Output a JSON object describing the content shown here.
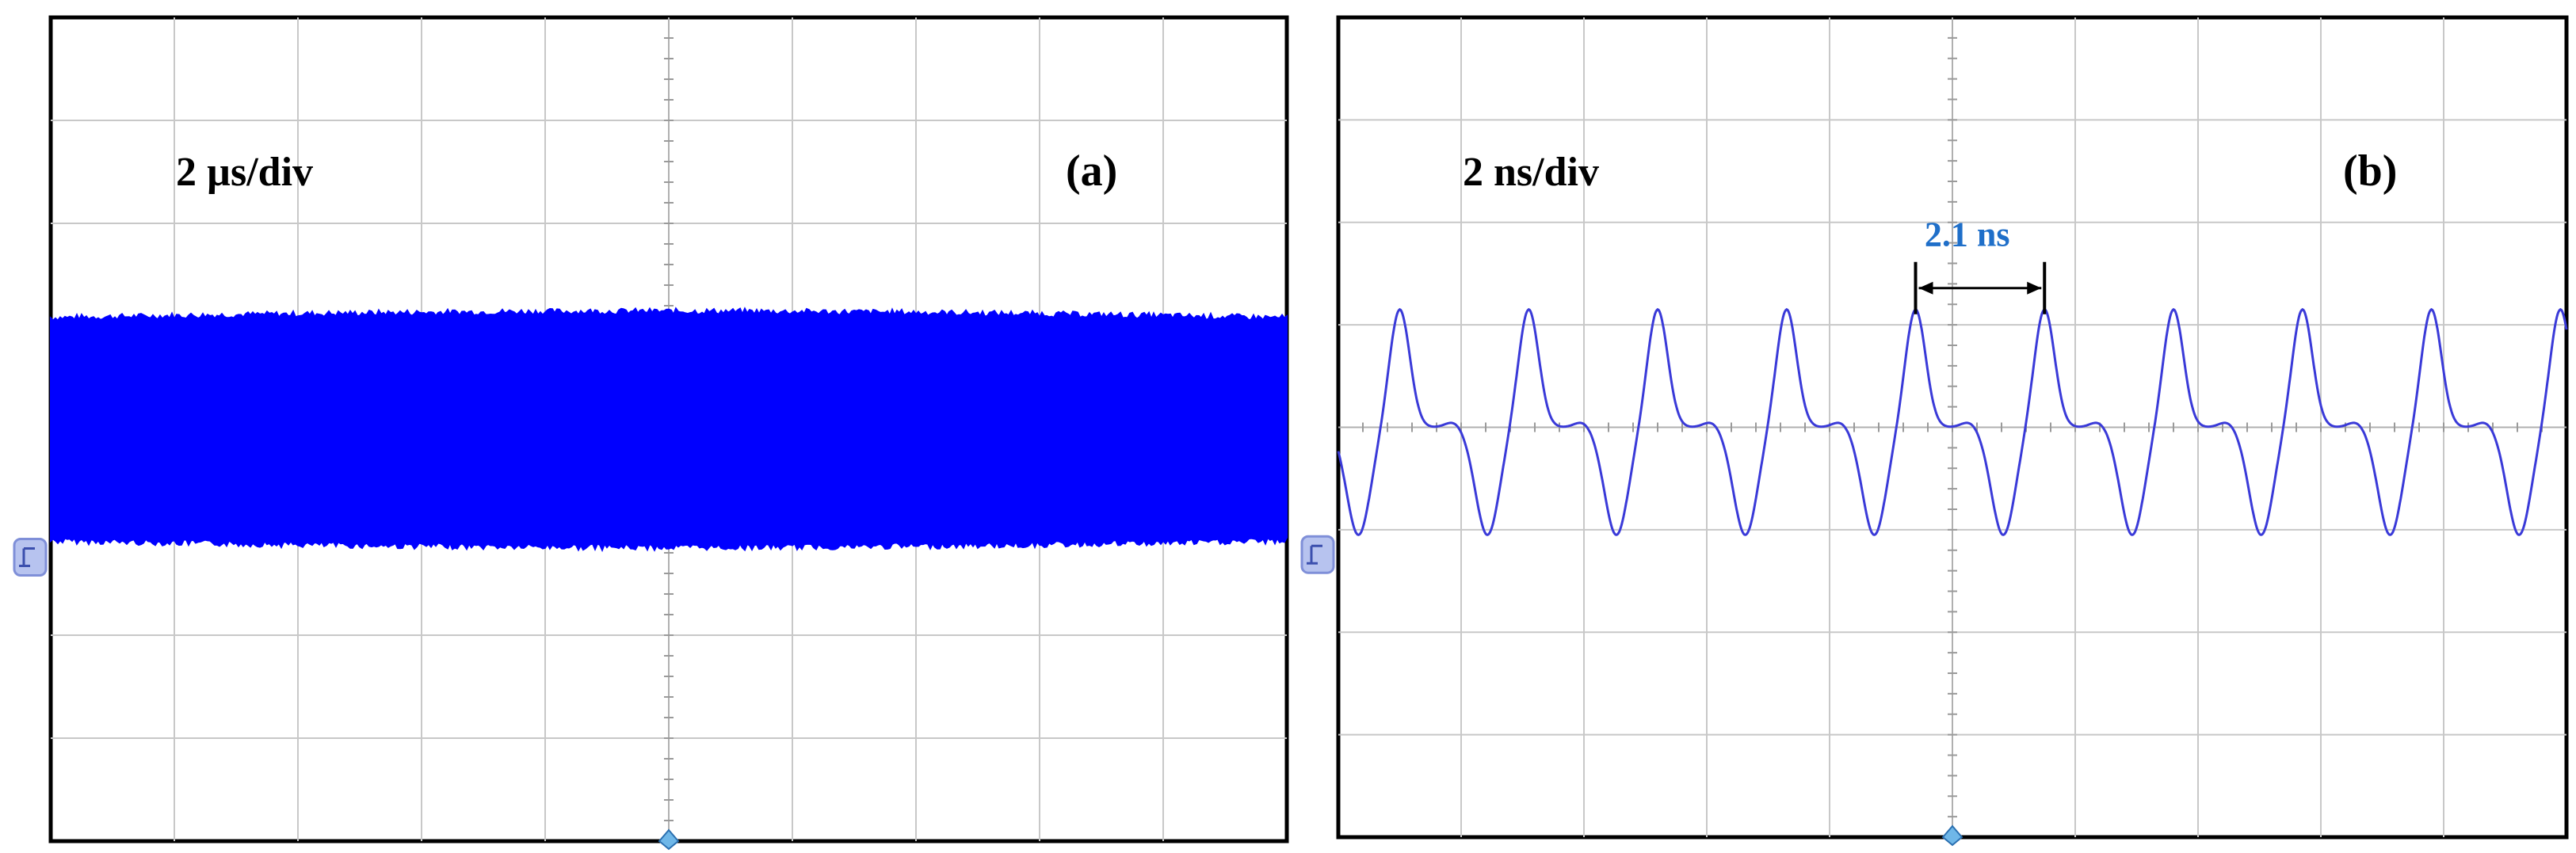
{
  "chart_data": [
    {
      "type": "line",
      "panel_tag": "(a)",
      "timebase_label": "2 µs/div",
      "grid": {
        "horizontal_divisions": 10,
        "vertical_divisions": 8,
        "visible": true
      },
      "trace": {
        "description_kind": "dense oscillation envelope",
        "center_div": 0.0,
        "amplitude_div": 1.05,
        "color": "#0000ff"
      },
      "colors": {
        "trace": "#0000ff",
        "marker": "#7f8fd8"
      }
    },
    {
      "type": "line",
      "panel_tag": "(b)",
      "timebase_label": "2 ns/div",
      "period_annotation": "2.1 ns",
      "grid": {
        "horizontal_divisions": 10,
        "vertical_divisions": 8,
        "visible": true
      },
      "trace": {
        "peaks_visible": 10,
        "period_div": 1.05,
        "max_div": 1.15,
        "min_div": -1.05,
        "color": "#3a3ad8"
      },
      "colors": {
        "trace": "#3a3ad8",
        "annotation": "#1f6fc9",
        "marker": "#7f8fd8"
      }
    }
  ]
}
